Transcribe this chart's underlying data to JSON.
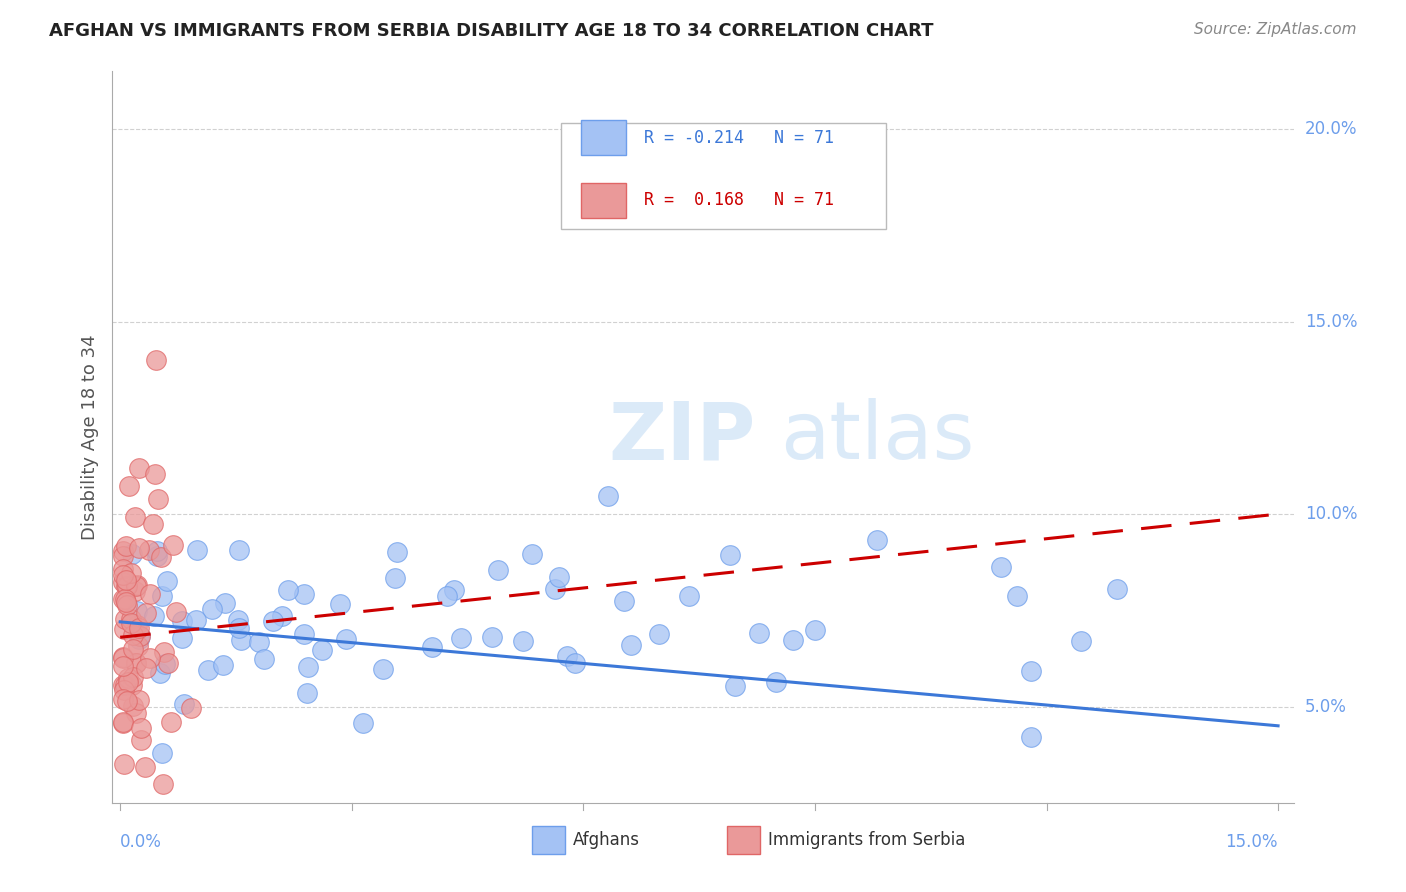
{
  "title": "AFGHAN VS IMMIGRANTS FROM SERBIA DISABILITY AGE 18 TO 34 CORRELATION CHART",
  "source": "Source: ZipAtlas.com",
  "ylabel": "Disability Age 18 to 34",
  "blue_color": "#a4c2f4",
  "blue_edge_color": "#6d9eeb",
  "pink_color": "#ea9999",
  "pink_edge_color": "#e06666",
  "blue_line_color": "#3c78d8",
  "pink_line_color": "#cc0000",
  "ytick_color": "#6d9eeb",
  "xtick_color": "#6d9eeb",
  "xlim": [
    0.0,
    0.15
  ],
  "ylim": [
    0.025,
    0.215
  ],
  "R_blue": -0.214,
  "R_pink": 0.168,
  "N": 71,
  "watermark_zip": "ZIP",
  "watermark_atlas": "atlas",
  "title_fontsize": 13,
  "source_fontsize": 11,
  "legend_fontsize": 12
}
